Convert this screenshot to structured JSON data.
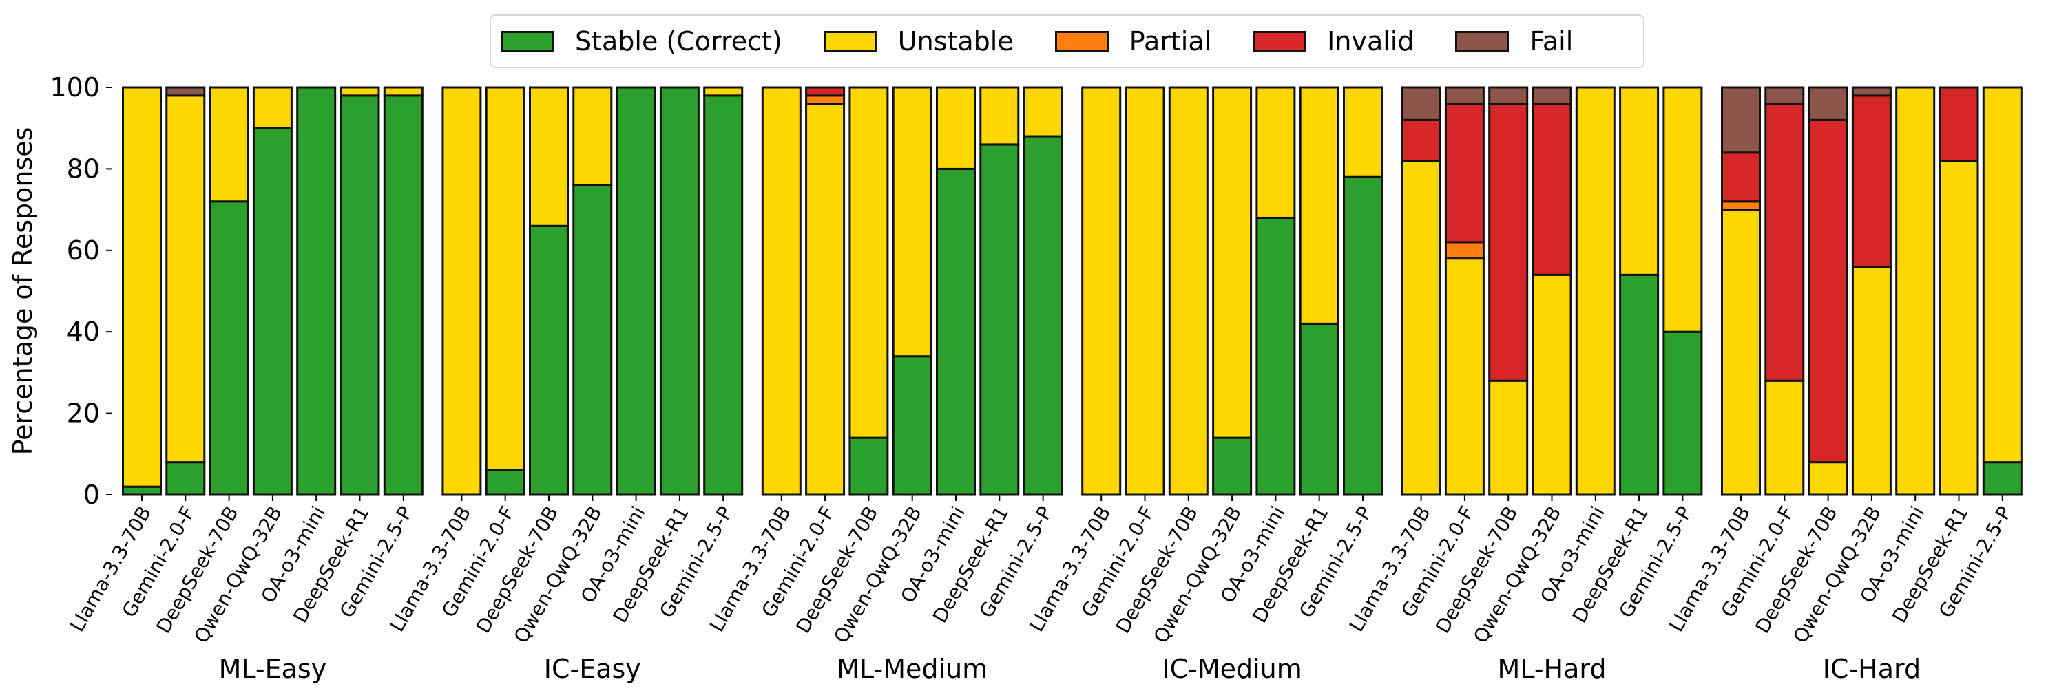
{
  "chart_data": {
    "type": "bar",
    "stacked": true,
    "title": "",
    "ylabel": "Percentage of Responses",
    "xlabel": "",
    "ylim": [
      0,
      100
    ],
    "yticks": [
      0,
      20,
      40,
      60,
      80,
      100
    ],
    "grid": false,
    "legend_position": "top-center",
    "legend": [
      {
        "key": "stable",
        "label": "Stable (Correct)",
        "color": "#2ca02c"
      },
      {
        "key": "unstable",
        "label": "Unstable",
        "color": "#ffd700"
      },
      {
        "key": "partial",
        "label": "Partial",
        "color": "#ff7f0e"
      },
      {
        "key": "invalid",
        "label": "Invalid",
        "color": "#d62728"
      },
      {
        "key": "fail",
        "label": "Fail",
        "color": "#8c564b"
      }
    ],
    "models": [
      "Llama-3.3-70B",
      "Gemini-2.0-F",
      "DeepSeek-70B",
      "Qwen-QwQ-32B",
      "OA-o3-mini",
      "DeepSeek-R1",
      "Gemini-2.5-P"
    ],
    "groups": [
      {
        "name": "ML-Easy",
        "series": {
          "stable": [
            2,
            8,
            72,
            90,
            100,
            98,
            98
          ],
          "unstable": [
            98,
            90,
            28,
            10,
            0,
            2,
            2
          ],
          "partial": [
            0,
            0,
            0,
            0,
            0,
            0,
            0
          ],
          "invalid": [
            0,
            0,
            0,
            0,
            0,
            0,
            0
          ],
          "fail": [
            0,
            2,
            0,
            0,
            0,
            0,
            0
          ]
        }
      },
      {
        "name": "IC-Easy",
        "series": {
          "stable": [
            0,
            6,
            66,
            76,
            100,
            100,
            98
          ],
          "unstable": [
            100,
            94,
            34,
            24,
            0,
            0,
            2
          ],
          "partial": [
            0,
            0,
            0,
            0,
            0,
            0,
            0
          ],
          "invalid": [
            0,
            0,
            0,
            0,
            0,
            0,
            0
          ],
          "fail": [
            0,
            0,
            0,
            0,
            0,
            0,
            0
          ]
        }
      },
      {
        "name": "ML-Medium",
        "series": {
          "stable": [
            0,
            0,
            14,
            34,
            80,
            86,
            88
          ],
          "unstable": [
            100,
            96,
            86,
            66,
            20,
            14,
            12
          ],
          "partial": [
            0,
            2,
            0,
            0,
            0,
            0,
            0
          ],
          "invalid": [
            0,
            2,
            0,
            0,
            0,
            0,
            0
          ],
          "fail": [
            0,
            0,
            0,
            0,
            0,
            0,
            0
          ]
        }
      },
      {
        "name": "IC-Medium",
        "series": {
          "stable": [
            0,
            0,
            0,
            14,
            68,
            42,
            78
          ],
          "unstable": [
            100,
            100,
            100,
            86,
            32,
            58,
            22
          ],
          "partial": [
            0,
            0,
            0,
            0,
            0,
            0,
            0
          ],
          "invalid": [
            0,
            0,
            0,
            0,
            0,
            0,
            0
          ],
          "fail": [
            0,
            0,
            0,
            0,
            0,
            0,
            0
          ]
        }
      },
      {
        "name": "ML-Hard",
        "series": {
          "stable": [
            0,
            0,
            0,
            0,
            0,
            54,
            40
          ],
          "unstable": [
            82,
            58,
            28,
            54,
            100,
            46,
            60
          ],
          "partial": [
            0,
            4,
            0,
            0,
            0,
            0,
            0
          ],
          "invalid": [
            10,
            34,
            68,
            42,
            0,
            0,
            0
          ],
          "fail": [
            8,
            4,
            4,
            4,
            0,
            0,
            0
          ]
        }
      },
      {
        "name": "IC-Hard",
        "series": {
          "stable": [
            0,
            0,
            0,
            0,
            0,
            0,
            8
          ],
          "unstable": [
            70,
            28,
            8,
            56,
            100,
            82,
            92
          ],
          "partial": [
            2,
            0,
            0,
            0,
            0,
            0,
            0
          ],
          "invalid": [
            12,
            68,
            84,
            42,
            0,
            18,
            0
          ],
          "fail": [
            16,
            4,
            8,
            2,
            0,
            0,
            0
          ]
        }
      }
    ]
  }
}
